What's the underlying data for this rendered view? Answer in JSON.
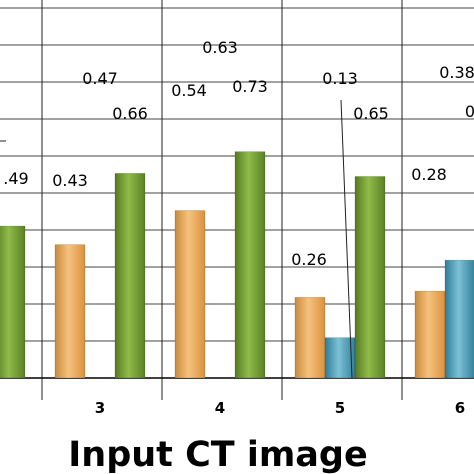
{
  "chart_data": {
    "type": "bar",
    "xlabel": "Input CT image",
    "categories": [
      "",
      "3",
      "4",
      "5",
      "6"
    ],
    "series": [
      {
        "color": "#e9a650",
        "values": [
          null,
          0.43,
          0.54,
          0.26,
          0.28
        ]
      },
      {
        "color": "#4a9bb6",
        "values": [
          null,
          null,
          null,
          0.13,
          0.38
        ]
      },
      {
        "color": "#6e9a2e",
        "values": [
          0.49,
          0.66,
          0.73,
          0.65,
          null
        ]
      }
    ],
    "data_labels": [
      {
        "text": ".49"
      },
      {
        "text": "0.43"
      },
      {
        "text": "0.47"
      },
      {
        "text": "0.66"
      },
      {
        "text": "0.54"
      },
      {
        "text": "0.63"
      },
      {
        "text": "0.73"
      },
      {
        "text": "0.26"
      },
      {
        "text": "0.13"
      },
      {
        "text": "0.65"
      },
      {
        "text": "0.28"
      },
      {
        "text": "0.38"
      },
      {
        "text": "0"
      }
    ],
    "grid": true
  }
}
